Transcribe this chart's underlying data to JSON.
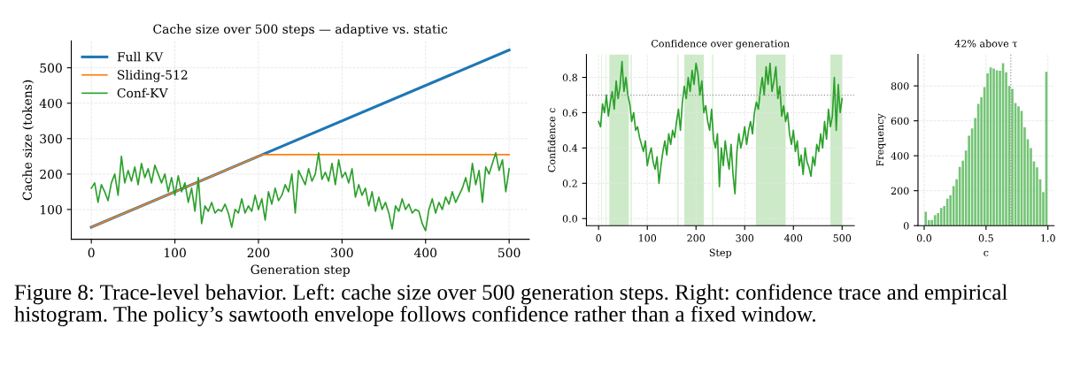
{
  "chart_data": [
    {
      "type": "line",
      "title": "Cache size over 500 steps — adaptive vs. static",
      "xlabel": "Generation step",
      "ylabel": "Cache size (tokens)",
      "xlim": [
        -24,
        524
      ],
      "ylim": [
        16,
        576
      ],
      "xticks": [
        0,
        100,
        200,
        300,
        400,
        500
      ],
      "yticks": [
        100,
        200,
        300,
        400,
        500
      ],
      "grid": true,
      "legend": "top left",
      "line_style": "solid",
      "annotations": [
        "Figure 8: Trace-level behavior. Left: cache size over 500 generation steps. Right: confidence trace and empirical histogram. The policy’s sawtooth envelope follows confidence rather than a fixed window."
      ],
      "series": [
        {
          "name": "Full KV",
          "color": "#1f77b4",
          "x": [
            0,
            500
          ],
          "values": [
            50,
            550
          ]
        },
        {
          "name": "Sliding-512",
          "color": "#ff7f0e",
          "x": [
            0,
            205,
            500
          ],
          "values": [
            50,
            255,
            255
          ]
        },
        {
          "name": "Conf-KV",
          "color": "#2ca02c",
          "x": [
            0,
            4,
            8,
            12,
            16,
            20,
            24,
            28,
            32,
            36,
            40,
            44,
            48,
            52,
            56,
            60,
            64,
            68,
            72,
            76,
            80,
            84,
            88,
            92,
            96,
            100,
            104,
            108,
            112,
            116,
            120,
            124,
            128,
            132,
            136,
            140,
            144,
            148,
            152,
            156,
            160,
            164,
            168,
            172,
            176,
            180,
            184,
            188,
            192,
            196,
            200,
            204,
            208,
            212,
            216,
            220,
            224,
            228,
            232,
            236,
            240,
            244,
            248,
            252,
            256,
            260,
            264,
            268,
            272,
            276,
            280,
            284,
            288,
            292,
            296,
            300,
            304,
            308,
            312,
            316,
            320,
            324,
            328,
            332,
            336,
            340,
            344,
            348,
            352,
            356,
            360,
            364,
            368,
            372,
            376,
            380,
            384,
            388,
            392,
            396,
            400,
            404,
            408,
            412,
            416,
            420,
            424,
            428,
            432,
            436,
            440,
            444,
            448,
            452,
            456,
            460,
            464,
            468,
            472,
            476,
            480,
            484,
            488,
            492,
            496,
            500
          ],
          "values": [
            160,
            175,
            120,
            170,
            150,
            125,
            175,
            200,
            140,
            250,
            175,
            210,
            180,
            220,
            170,
            230,
            190,
            215,
            175,
            225,
            200,
            175,
            200,
            150,
            190,
            140,
            195,
            150,
            175,
            120,
            160,
            95,
            190,
            60,
            110,
            95,
            120,
            90,
            100,
            95,
            115,
            90,
            50,
            100,
            90,
            130,
            90,
            110,
            95,
            140,
            100,
            130,
            70,
            150,
            115,
            160,
            125,
            140,
            170,
            150,
            200,
            90,
            210,
            190,
            170,
            215,
            180,
            200,
            260,
            185,
            205,
            180,
            230,
            170,
            240,
            190,
            205,
            175,
            215,
            135,
            170,
            140,
            160,
            110,
            150,
            95,
            135,
            100,
            120,
            90,
            45,
            110,
            95,
            130,
            100,
            115,
            90,
            100,
            95,
            60,
            40,
            100,
            130,
            90,
            120,
            100,
            135,
            115,
            150,
            120,
            140,
            160,
            190,
            150,
            230,
            170,
            210,
            120,
            220,
            200,
            230,
            260,
            210,
            240,
            150,
            215
          ]
        }
      ]
    },
    {
      "type": "line",
      "title": "Confidence over generation",
      "xlabel": "Step",
      "ylabel": "Confidence c",
      "xlim": [
        -25,
        525
      ],
      "ylim": [
        -0.04,
        0.93
      ],
      "xticks": [
        0,
        100,
        200,
        300,
        400,
        500
      ],
      "yticks": [
        {
          "value": 0,
          "label": "0.0"
        },
        0.2,
        0.4,
        0.6,
        0.8
      ],
      "grid": true,
      "line_style": "solid",
      "ref_lines": [
        {
          "axis": "y",
          "value": 0.7,
          "color": "#999999",
          "line_style": "dotted"
        }
      ],
      "bands": [
        {
          "axis": "x",
          "from": 6,
          "to": 7,
          "color": "#cdeac8"
        },
        {
          "axis": "x",
          "from": 15,
          "to": 16,
          "color": "#cdeac8"
        },
        {
          "axis": "x",
          "from": 22,
          "to": 62,
          "color": "#cdeac8"
        },
        {
          "axis": "x",
          "from": 66,
          "to": 68,
          "color": "#cdeac8"
        },
        {
          "axis": "x",
          "from": 162,
          "to": 164,
          "color": "#cdeac8"
        },
        {
          "axis": "x",
          "from": 176,
          "to": 216,
          "color": "#cdeac8"
        },
        {
          "axis": "x",
          "from": 233,
          "to": 235,
          "color": "#cdeac8"
        },
        {
          "axis": "x",
          "from": 323,
          "to": 384,
          "color": "#cdeac8"
        },
        {
          "axis": "x",
          "from": 476,
          "to": 500,
          "color": "#cdeac8"
        }
      ],
      "series": [
        {
          "color": "#2ca02c",
          "x": [
            0,
            4,
            8,
            12,
            16,
            20,
            24,
            28,
            32,
            36,
            40,
            44,
            48,
            52,
            56,
            60,
            64,
            68,
            72,
            76,
            80,
            84,
            88,
            92,
            96,
            100,
            104,
            108,
            112,
            116,
            120,
            124,
            128,
            132,
            136,
            140,
            144,
            148,
            152,
            156,
            160,
            164,
            168,
            172,
            176,
            180,
            184,
            188,
            192,
            196,
            200,
            204,
            208,
            212,
            216,
            220,
            224,
            228,
            232,
            236,
            240,
            244,
            248,
            252,
            256,
            260,
            264,
            268,
            272,
            276,
            280,
            284,
            288,
            292,
            296,
            300,
            304,
            308,
            312,
            316,
            320,
            324,
            328,
            332,
            336,
            340,
            344,
            348,
            352,
            356,
            360,
            364,
            368,
            372,
            376,
            380,
            384,
            388,
            392,
            396,
            400,
            404,
            408,
            412,
            416,
            420,
            424,
            428,
            432,
            436,
            440,
            444,
            448,
            452,
            456,
            460,
            464,
            468,
            472,
            476,
            480,
            484,
            488,
            492,
            496,
            500
          ],
          "values": [
            0.55,
            0.52,
            0.65,
            0.6,
            0.7,
            0.58,
            0.66,
            0.72,
            0.62,
            0.78,
            0.68,
            0.75,
            0.89,
            0.72,
            0.8,
            0.7,
            0.65,
            0.55,
            0.6,
            0.5,
            0.52,
            0.46,
            0.42,
            0.38,
            0.44,
            0.3,
            0.36,
            0.4,
            0.32,
            0.28,
            0.35,
            0.2,
            0.3,
            0.38,
            0.44,
            0.36,
            0.48,
            0.42,
            0.5,
            0.46,
            0.55,
            0.62,
            0.5,
            0.66,
            0.75,
            0.68,
            0.8,
            0.72,
            0.84,
            0.76,
            0.88,
            0.82,
            0.7,
            0.78,
            0.6,
            0.64,
            0.55,
            0.5,
            0.62,
            0.45,
            0.4,
            0.48,
            0.18,
            0.4,
            0.3,
            0.44,
            0.35,
            0.28,
            0.42,
            0.25,
            0.14,
            0.38,
            0.48,
            0.4,
            0.45,
            0.52,
            0.42,
            0.5,
            0.55,
            0.48,
            0.6,
            0.66,
            0.62,
            0.72,
            0.8,
            0.7,
            0.86,
            0.76,
            0.88,
            0.72,
            0.78,
            0.86,
            0.68,
            0.75,
            0.58,
            0.64,
            0.55,
            0.6,
            0.48,
            0.42,
            0.5,
            0.38,
            0.44,
            0.3,
            0.36,
            0.25,
            0.4,
            0.32,
            0.29,
            0.24,
            0.35,
            0.3,
            0.42,
            0.38,
            0.48,
            0.4,
            0.55,
            0.45,
            0.62,
            0.52,
            0.58,
            0.8,
            0.5,
            0.76,
            0.6,
            0.68
          ]
        }
      ]
    },
    {
      "type": "histogram",
      "title": "42% above τ",
      "xlabel": "c",
      "ylabel": "Frequency",
      "xlim": [
        -0.05,
        1.05
      ],
      "ylim": [
        0,
        980
      ],
      "xticks": [
        {
          "value": 0,
          "label": "0.0"
        },
        0.5,
        {
          "value": 1,
          "label": "1.0"
        }
      ],
      "yticks": [
        0,
        200,
        400,
        600,
        800
      ],
      "grid": true,
      "color": "#74c476",
      "ref_lines": [
        {
          "axis": "x",
          "value": 0.7,
          "color": "#999999",
          "line_style": "dotted"
        }
      ],
      "bins": [
        0,
        0.025,
        0.05,
        0.075,
        0.1,
        0.125,
        0.15,
        0.175,
        0.2,
        0.225,
        0.25,
        0.275,
        0.3,
        0.325,
        0.35,
        0.375,
        0.4,
        0.425,
        0.45,
        0.475,
        0.5,
        0.525,
        0.55,
        0.575,
        0.6,
        0.625,
        0.65,
        0.675,
        0.7,
        0.725,
        0.75,
        0.775,
        0.8,
        0.825,
        0.85,
        0.875,
        0.9,
        0.925,
        0.95,
        0.975,
        1.0
      ],
      "values": [
        80,
        31,
        33,
        60,
        72,
        101,
        113,
        154,
        175,
        226,
        265,
        337,
        372,
        430,
        515,
        557,
        616,
        697,
        735,
        793,
        872,
        906,
        900,
        889,
        887,
        930,
        878,
        800,
        783,
        702,
        683,
        656,
        563,
        495,
        444,
        368,
        334,
        265,
        192,
        880
      ]
    }
  ]
}
